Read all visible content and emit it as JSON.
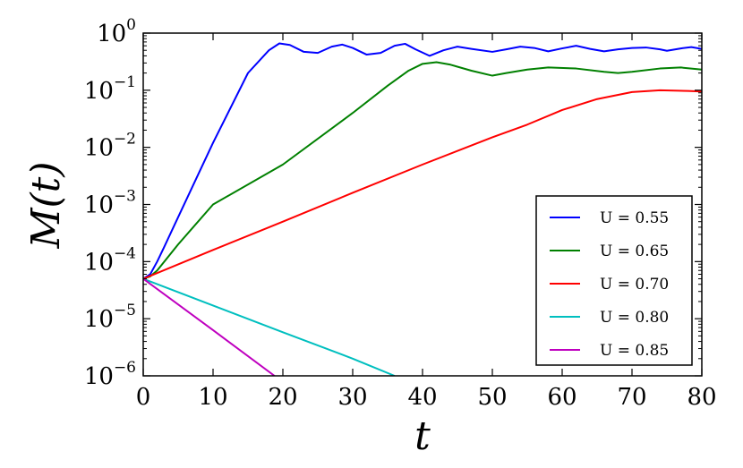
{
  "chart_data": {
    "type": "line",
    "xlabel": "t",
    "ylabel": "M(t)",
    "xlim": [
      0,
      80
    ],
    "ylim": [
      1e-06,
      1
    ],
    "yscale": "log",
    "grid": false,
    "legend_position": "bottom-right",
    "x_ticks": [
      {
        "value": 0,
        "label": "0"
      },
      {
        "value": 10,
        "label": "10"
      },
      {
        "value": 20,
        "label": "20"
      },
      {
        "value": 30,
        "label": "30"
      },
      {
        "value": 40,
        "label": "40"
      },
      {
        "value": 50,
        "label": "50"
      },
      {
        "value": 60,
        "label": "60"
      },
      {
        "value": 70,
        "label": "70"
      },
      {
        "value": 80,
        "label": "80"
      }
    ],
    "y_ticks": [
      {
        "value": 1e-06,
        "base": "10",
        "exp": "−6"
      },
      {
        "value": 1e-05,
        "base": "10",
        "exp": "−5"
      },
      {
        "value": 0.0001,
        "base": "10",
        "exp": "−4"
      },
      {
        "value": 0.001,
        "base": "10",
        "exp": "−3"
      },
      {
        "value": 0.01,
        "base": "10",
        "exp": "−2"
      },
      {
        "value": 0.1,
        "base": "10",
        "exp": "−1"
      },
      {
        "value": 1,
        "base": "10",
        "exp": "0"
      }
    ],
    "series": [
      {
        "name": "U = 0.55",
        "color": "#0000ff",
        "points": [
          [
            0,
            5e-05
          ],
          [
            1,
            6e-05
          ],
          [
            2,
            0.0001
          ],
          [
            3,
            0.00018
          ],
          [
            5,
            0.0006
          ],
          [
            10,
            0.012
          ],
          [
            15,
            0.2
          ],
          [
            18,
            0.5
          ],
          [
            19.5,
            0.66
          ],
          [
            21,
            0.62
          ],
          [
            23,
            0.47
          ],
          [
            25,
            0.45
          ],
          [
            27,
            0.58
          ],
          [
            28.5,
            0.63
          ],
          [
            30,
            0.55
          ],
          [
            32,
            0.42
          ],
          [
            34,
            0.45
          ],
          [
            36,
            0.6
          ],
          [
            37.5,
            0.65
          ],
          [
            39,
            0.52
          ],
          [
            41,
            0.4
          ],
          [
            43,
            0.5
          ],
          [
            45,
            0.58
          ],
          [
            47,
            0.53
          ],
          [
            50,
            0.47
          ],
          [
            52,
            0.52
          ],
          [
            54,
            0.58
          ],
          [
            56,
            0.55
          ],
          [
            58,
            0.48
          ],
          [
            60,
            0.54
          ],
          [
            62,
            0.6
          ],
          [
            64,
            0.53
          ],
          [
            66,
            0.48
          ],
          [
            68,
            0.52
          ],
          [
            70,
            0.55
          ],
          [
            72,
            0.56
          ],
          [
            74,
            0.52
          ],
          [
            75,
            0.49
          ],
          [
            77,
            0.54
          ],
          [
            78.5,
            0.57
          ],
          [
            80,
            0.53
          ]
        ]
      },
      {
        "name": "U = 0.65",
        "color": "#008000",
        "points": [
          [
            0,
            5e-05
          ],
          [
            1,
            5.5e-05
          ],
          [
            2,
            7e-05
          ],
          [
            5,
            0.0002
          ],
          [
            10,
            0.001
          ],
          [
            20,
            0.005
          ],
          [
            30,
            0.04
          ],
          [
            35,
            0.12
          ],
          [
            38,
            0.22
          ],
          [
            40,
            0.29
          ],
          [
            42,
            0.31
          ],
          [
            44,
            0.28
          ],
          [
            47,
            0.22
          ],
          [
            50,
            0.18
          ],
          [
            52,
            0.2
          ],
          [
            55,
            0.23
          ],
          [
            58,
            0.25
          ],
          [
            62,
            0.24
          ],
          [
            66,
            0.21
          ],
          [
            68,
            0.2
          ],
          [
            70,
            0.21
          ],
          [
            74,
            0.24
          ],
          [
            77,
            0.25
          ],
          [
            80,
            0.23
          ]
        ]
      },
      {
        "name": "U = 0.70",
        "color": "#ff0000",
        "points": [
          [
            0,
            5e-05
          ],
          [
            10,
            0.00016
          ],
          [
            20,
            0.0005
          ],
          [
            30,
            0.0016
          ],
          [
            40,
            0.005
          ],
          [
            50,
            0.015
          ],
          [
            55,
            0.025
          ],
          [
            60,
            0.045
          ],
          [
            65,
            0.07
          ],
          [
            70,
            0.093
          ],
          [
            74,
            0.1
          ],
          [
            78,
            0.097
          ],
          [
            80,
            0.095
          ]
        ]
      },
      {
        "name": "U = 0.80",
        "color": "#00bfbf",
        "points": [
          [
            0,
            5e-05
          ],
          [
            10,
            1.7e-05
          ],
          [
            20,
            5.8e-06
          ],
          [
            30,
            2e-06
          ],
          [
            36,
            1e-06
          ]
        ]
      },
      {
        "name": "U = 0.85",
        "color": "#bf00bf",
        "points": [
          [
            0,
            5e-05
          ],
          [
            10,
            6.3e-06
          ],
          [
            18.8,
            1e-06
          ]
        ]
      }
    ]
  }
}
